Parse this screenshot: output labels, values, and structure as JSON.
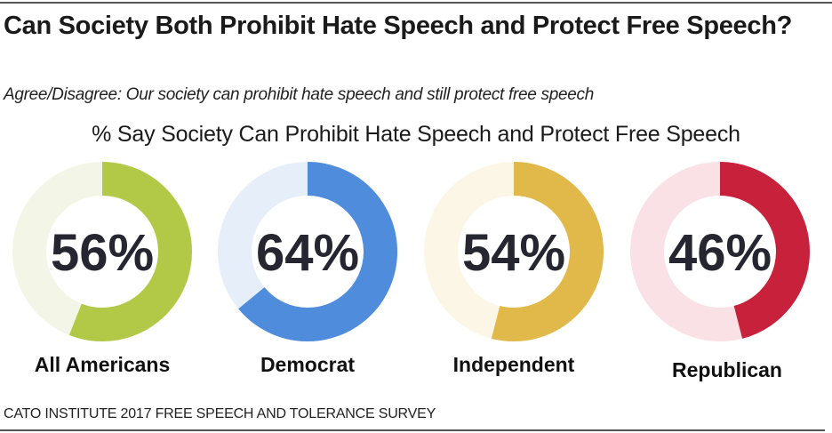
{
  "header": {
    "title": "Can Society Both Prohibit Hate Speech and Protect Free Speech?",
    "subtitle": "Agree/Disagree: Our society can prohibit hate speech and still protect free speech"
  },
  "footer": {
    "source": "CATO INSTITUTE 2017 FREE SPEECH AND TOLERANCE SURVEY"
  },
  "chart_data": {
    "type": "pie",
    "subtype": "donut",
    "title": "% Say Society Can Prohibit Hate Speech and Protect Free Speech",
    "unit": "%",
    "categories": [
      "All Americans",
      "Democrat",
      "Independent",
      "Republican"
    ],
    "values": [
      56,
      64,
      54,
      46
    ],
    "labels": [
      "56%",
      "64%",
      "54%",
      "46%"
    ],
    "colors": [
      {
        "fill": "#b2c947",
        "track": "#f3f6e6"
      },
      {
        "fill": "#4f8cdb",
        "track": "#e6eefa"
      },
      {
        "fill": "#e0b94a",
        "track": "#fcf6e6"
      },
      {
        "fill": "#c8213c",
        "track": "#f9e1e5"
      }
    ],
    "legend": "none"
  }
}
